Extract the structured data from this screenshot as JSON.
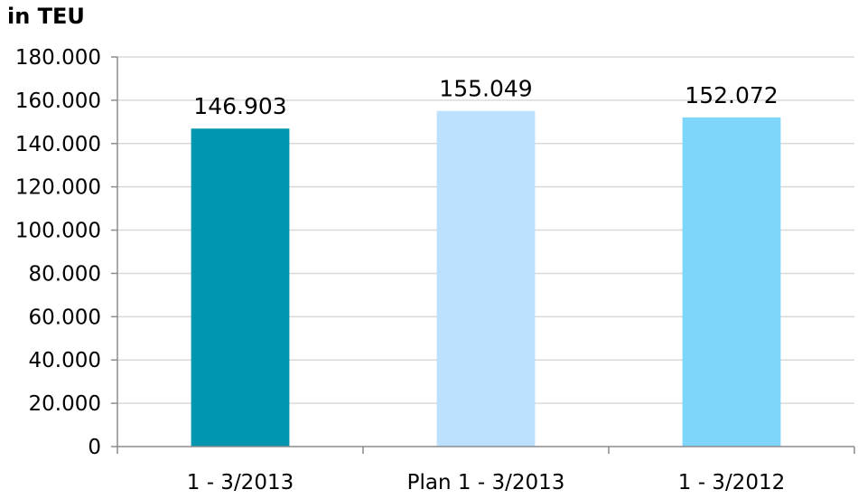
{
  "chart_data": {
    "type": "bar",
    "unit_label": "in TEU",
    "categories": [
      "1 - 3/2013",
      "Plan 1 - 3/2013",
      "1 - 3/2012"
    ],
    "values": [
      146903,
      155049,
      152072
    ],
    "data_labels": [
      "146.903",
      "155.049",
      "152.072"
    ],
    "bar_colors": [
      "#0096b0",
      "#bde0fd",
      "#7fd6fb"
    ],
    "ylim": [
      0,
      180000
    ],
    "y_ticks": [
      0,
      20000,
      40000,
      60000,
      80000,
      100000,
      120000,
      140000,
      160000,
      180000
    ],
    "y_tick_labels": [
      "0",
      "20.000",
      "40.000",
      "60.000",
      "80.000",
      "100.000",
      "120.000",
      "140.000",
      "160.000",
      "180.000"
    ],
    "grid": true,
    "legend": "none"
  }
}
